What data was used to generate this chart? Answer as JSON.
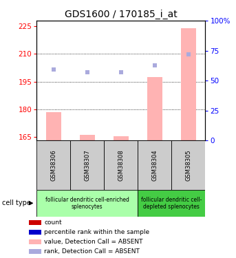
{
  "title": "GDS1600 / 170185_i_at",
  "samples": [
    "GSM38306",
    "GSM38307",
    "GSM38308",
    "GSM38304",
    "GSM38305"
  ],
  "xlim": [
    0.5,
    5.5
  ],
  "ylim_left": [
    163,
    228
  ],
  "ylim_right": [
    0,
    100
  ],
  "yticks_left": [
    165,
    180,
    195,
    210,
    225
  ],
  "yticks_right": [
    0,
    25,
    50,
    75,
    100
  ],
  "ytick_labels_right": [
    "0",
    "25",
    "50",
    "75",
    "100%"
  ],
  "bar_values": [
    178.5,
    166.0,
    165.5,
    197.5,
    224.0
  ],
  "bar_bottom": 163,
  "rank_right_values": [
    59,
    57,
    57,
    63,
    72
  ],
  "bar_color": "#ffb3b3",
  "rank_color": "#aaaadd",
  "group1_label": "follicular dendritic cell-enriched\nsplenocytes",
  "group2_label": "follicular dendritic cell-\ndepleted splenocytes",
  "group1_color": "#aaffaa",
  "group2_color": "#44cc44",
  "sample_box_color": "#cccccc",
  "legend_items": [
    {
      "color": "#cc0000",
      "label": "count"
    },
    {
      "color": "#0000cc",
      "label": "percentile rank within the sample"
    },
    {
      "color": "#ffb3b3",
      "label": "value, Detection Call = ABSENT"
    },
    {
      "color": "#aaaadd",
      "label": "rank, Detection Call = ABSENT"
    }
  ],
  "cell_type_label": "cell type",
  "hgrid_values": [
    180,
    195,
    210
  ],
  "title_fontsize": 10,
  "tick_fontsize": 7.5,
  "label_fontsize": 7
}
